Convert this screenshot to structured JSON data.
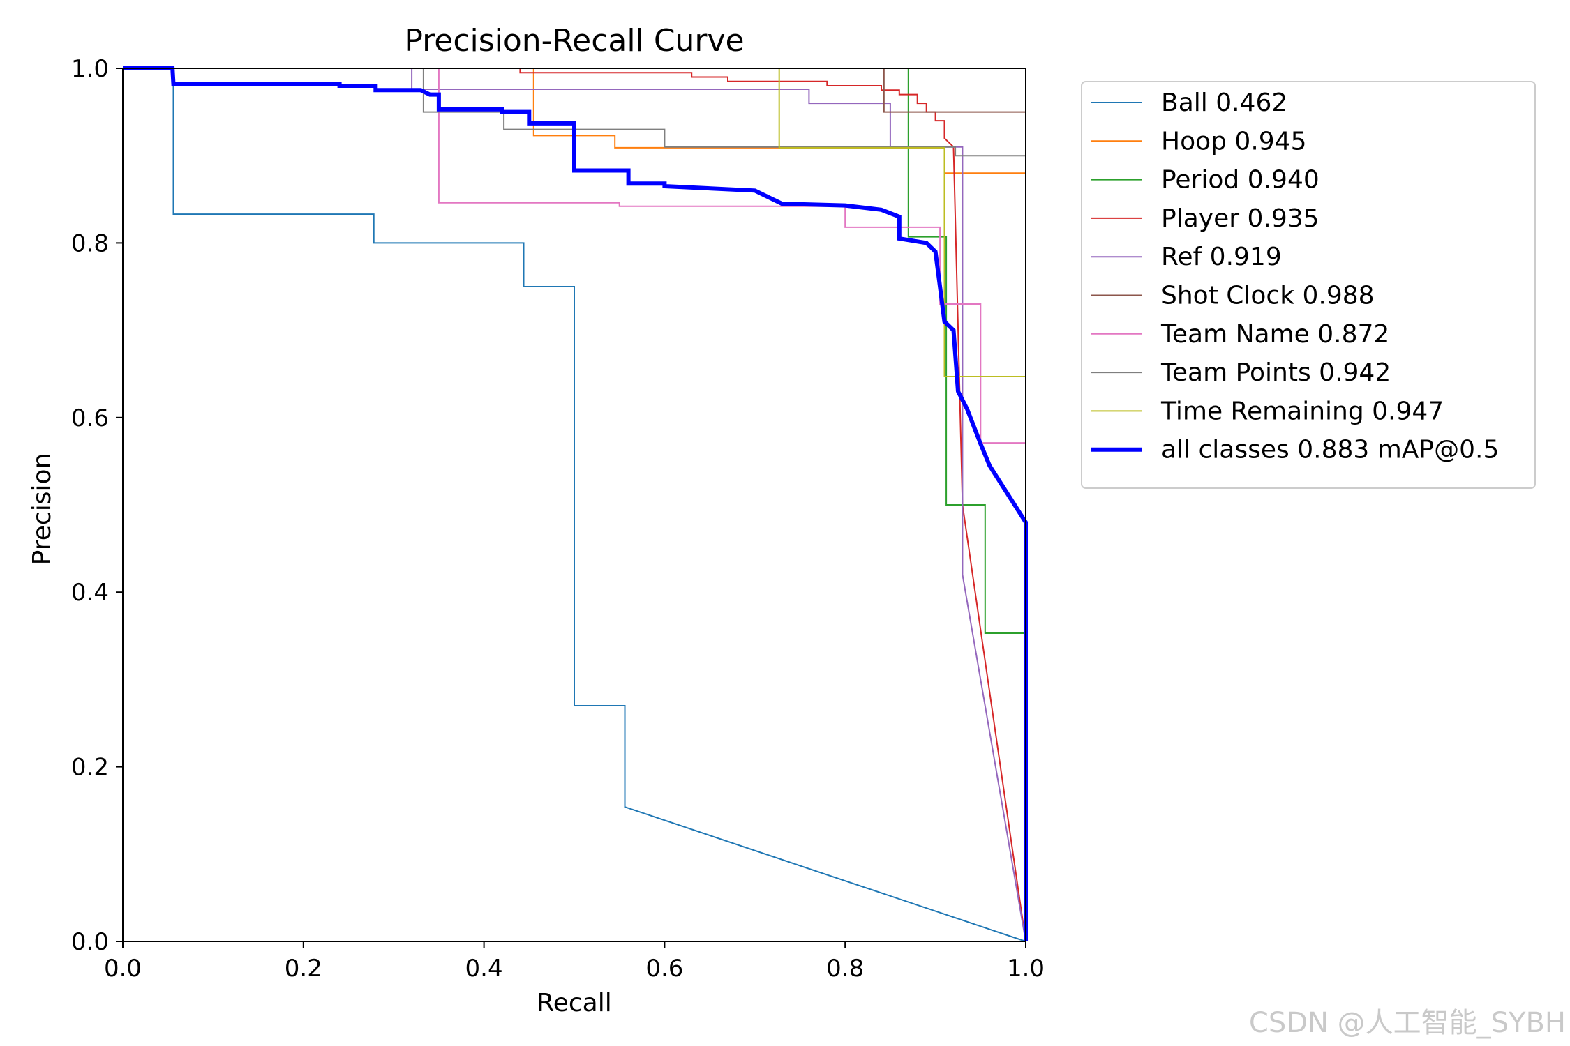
{
  "watermark": "CSDN @人工智能_SYBH",
  "chart_data": {
    "type": "line",
    "title": "Precision-Recall Curve",
    "xlabel": "Recall",
    "ylabel": "Precision",
    "xlim": [
      0,
      1
    ],
    "ylim": [
      0,
      1
    ],
    "xticks": [
      "0.0",
      "0.2",
      "0.4",
      "0.6",
      "0.8",
      "1.0"
    ],
    "yticks": [
      "0.0",
      "0.2",
      "0.4",
      "0.6",
      "0.8",
      "1.0"
    ],
    "legend_position": "outside-right",
    "series": [
      {
        "name": "Ball 0.462",
        "color": "#1f77b4",
        "width": 2,
        "x": [
          0,
          0.056,
          0.056,
          0.278,
          0.278,
          0.444,
          0.444,
          0.5,
          0.5,
          0.556,
          0.556,
          1.0
        ],
        "y": [
          1.0,
          1.0,
          0.833,
          0.833,
          0.8,
          0.8,
          0.75,
          0.75,
          0.27,
          0.27,
          0.154,
          0.0
        ]
      },
      {
        "name": "Hoop 0.945",
        "color": "#ff7f0e",
        "width": 2,
        "x": [
          0,
          0.455,
          0.455,
          0.545,
          0.545,
          0.6,
          0.6,
          0.91,
          0.91,
          1.0,
          1.0
        ],
        "y": [
          1.0,
          1.0,
          0.923,
          0.923,
          0.909,
          0.909,
          0.909,
          0.909,
          0.88,
          0.88,
          0.0
        ]
      },
      {
        "name": "Period 0.940",
        "color": "#2ca02c",
        "width": 2,
        "x": [
          0,
          0.87,
          0.87,
          0.912,
          0.912,
          0.955,
          0.955,
          1.0,
          1.0
        ],
        "y": [
          1.0,
          1.0,
          0.807,
          0.807,
          0.5,
          0.5,
          0.353,
          0.353,
          0.0
        ]
      },
      {
        "name": "Player 0.935",
        "color": "#d62728",
        "width": 2,
        "x": [
          0,
          0.44,
          0.44,
          0.63,
          0.63,
          0.67,
          0.67,
          0.78,
          0.78,
          0.84,
          0.84,
          0.86,
          0.86,
          0.88,
          0.88,
          0.89,
          0.89,
          0.9,
          0.9,
          0.91,
          0.91,
          0.92,
          0.93,
          1.0
        ],
        "y": [
          1.0,
          1.0,
          0.995,
          0.995,
          0.99,
          0.99,
          0.985,
          0.985,
          0.98,
          0.98,
          0.975,
          0.975,
          0.97,
          0.97,
          0.96,
          0.96,
          0.95,
          0.95,
          0.94,
          0.94,
          0.92,
          0.91,
          0.5,
          0.0
        ]
      },
      {
        "name": "Ref 0.919",
        "color": "#9467bd",
        "width": 2,
        "x": [
          0,
          0.32,
          0.32,
          0.76,
          0.76,
          0.85,
          0.85,
          0.93,
          0.93,
          1.0
        ],
        "y": [
          1.0,
          1.0,
          0.976,
          0.976,
          0.96,
          0.96,
          0.91,
          0.91,
          0.42,
          0.0
        ]
      },
      {
        "name": "Shot Clock 0.988",
        "color": "#8c564b",
        "width": 2,
        "x": [
          0,
          0.843,
          0.843,
          1.0,
          1.0
        ],
        "y": [
          1.0,
          1.0,
          0.95,
          0.95,
          0.0
        ]
      },
      {
        "name": "Team Name 0.872",
        "color": "#e377c2",
        "width": 2,
        "x": [
          0,
          0.35,
          0.35,
          0.55,
          0.55,
          0.8,
          0.8,
          0.905,
          0.905,
          0.915,
          0.915,
          0.95,
          0.95,
          1.0,
          1.0
        ],
        "y": [
          1.0,
          1.0,
          0.846,
          0.846,
          0.842,
          0.842,
          0.818,
          0.818,
          0.73,
          0.73,
          0.73,
          0.73,
          0.571,
          0.571,
          0.0
        ]
      },
      {
        "name": "Team Points 0.942",
        "color": "#7f7f7f",
        "width": 2,
        "x": [
          0,
          0.333,
          0.333,
          0.422,
          0.422,
          0.6,
          0.6,
          0.922,
          0.922,
          1.0,
          1.0
        ],
        "y": [
          1.0,
          1.0,
          0.95,
          0.95,
          0.93,
          0.93,
          0.91,
          0.91,
          0.9,
          0.9,
          0.0
        ]
      },
      {
        "name": "Time Remaining 0.947",
        "color": "#bcbd22",
        "width": 2,
        "x": [
          0,
          0.727,
          0.727,
          0.91,
          0.91,
          1.0,
          1.0
        ],
        "y": [
          1.0,
          1.0,
          0.909,
          0.909,
          0.647,
          0.647,
          0.0
        ]
      },
      {
        "name": "all classes 0.883 mAP@0.5",
        "color": "#0000ff",
        "width": 6,
        "x": [
          0,
          0.055,
          0.056,
          0.24,
          0.24,
          0.28,
          0.28,
          0.33,
          0.34,
          0.35,
          0.35,
          0.42,
          0.42,
          0.45,
          0.45,
          0.5,
          0.5,
          0.56,
          0.56,
          0.6,
          0.6,
          0.7,
          0.73,
          0.8,
          0.84,
          0.86,
          0.86,
          0.89,
          0.9,
          0.905,
          0.91,
          0.92,
          0.925,
          0.935,
          0.95,
          0.96,
          1.0,
          1.0
        ],
        "y": [
          1.0,
          1.0,
          0.982,
          0.982,
          0.98,
          0.98,
          0.975,
          0.975,
          0.97,
          0.97,
          0.953,
          0.953,
          0.95,
          0.95,
          0.937,
          0.937,
          0.883,
          0.883,
          0.868,
          0.868,
          0.865,
          0.86,
          0.845,
          0.843,
          0.838,
          0.83,
          0.805,
          0.8,
          0.79,
          0.75,
          0.71,
          0.7,
          0.63,
          0.61,
          0.57,
          0.545,
          0.48,
          0.0
        ]
      }
    ]
  }
}
